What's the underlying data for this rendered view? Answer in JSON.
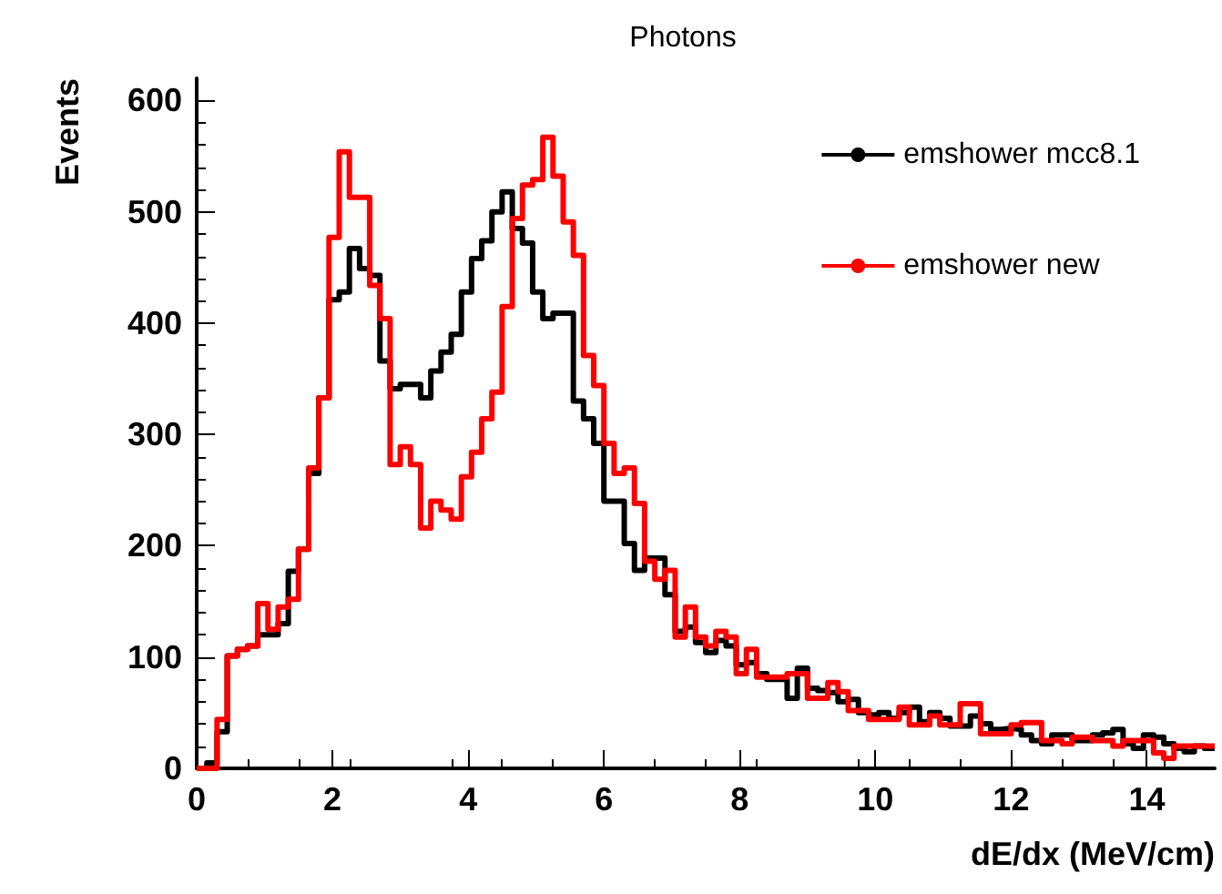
{
  "chart_data": {
    "type": "histogram",
    "title": "Photons",
    "xlabel": "dE/dx (MeV/cm)",
    "ylabel": "Events",
    "bins": [
      0,
      0.15,
      0.3,
      0.45,
      0.6,
      0.75,
      0.9,
      1.05,
      1.2,
      1.35,
      1.5,
      1.65,
      1.8,
      1.95,
      2.1,
      2.25,
      2.4,
      2.55,
      2.7,
      2.85,
      3,
      3.15,
      3.3,
      3.45,
      3.6,
      3.75,
      3.9,
      4.05,
      4.2,
      4.35,
      4.5,
      4.65,
      4.8,
      4.95,
      5.1,
      5.25,
      5.4,
      5.55,
      5.7,
      5.85,
      6,
      6.15,
      6.3,
      6.45,
      6.6,
      6.75,
      6.9,
      7.05,
      7.2,
      7.35,
      7.5,
      7.65,
      7.8,
      7.95,
      8.1,
      8.25,
      8.4,
      8.55,
      8.7,
      8.85,
      9,
      9.15,
      9.3,
      9.45,
      9.6,
      9.75,
      9.9,
      10.05,
      10.2,
      10.35,
      10.5,
      10.65,
      10.8,
      10.95,
      11.1,
      11.25,
      11.4,
      11.55,
      11.7,
      11.85,
      12,
      12.15,
      12.3,
      12.45,
      12.6,
      12.75,
      12.9,
      13.05,
      13.2,
      13.35,
      13.5,
      13.65,
      13.8,
      13.95,
      14.1,
      14.25,
      14.4,
      14.55,
      14.7,
      14.85,
      15
    ],
    "series": [
      {
        "name": "emshower mcc8.1",
        "color": "#000000",
        "values": [
          0,
          5,
          33,
          101,
          107,
          110,
          120,
          120,
          130,
          177,
          197,
          265,
          333,
          421,
          428,
          467,
          449,
          443,
          366,
          341,
          345,
          345,
          333,
          357,
          374,
          390,
          428,
          458,
          474,
          500,
          518,
          485,
          472,
          428,
          404,
          409,
          409,
          330,
          314,
          292,
          240,
          240,
          202,
          178,
          189,
          189,
          156,
          123,
          127,
          113,
          104,
          115,
          110,
          93,
          95,
          85,
          80,
          80,
          63,
          90,
          72,
          70,
          68,
          60,
          62,
          50,
          48,
          50,
          45,
          50,
          55,
          42,
          50,
          45,
          38,
          38,
          47,
          40,
          35,
          36,
          35,
          30,
          25,
          22,
          30,
          30,
          25,
          25,
          30,
          32,
          35,
          22,
          18,
          30,
          28,
          22,
          18,
          15,
          20,
          18
        ]
      },
      {
        "name": "emshower new",
        "color": "#ff0000",
        "values": [
          0,
          0,
          44,
          101,
          107,
          110,
          148,
          125,
          145,
          152,
          197,
          270,
          333,
          477,
          554,
          513,
          513,
          434,
          404,
          273,
          289,
          273,
          216,
          240,
          232,
          224,
          262,
          284,
          314,
          338,
          415,
          494,
          524,
          529,
          567,
          532,
          491,
          461,
          371,
          344,
          292,
          265,
          270,
          238,
          186,
          170,
          178,
          118,
          145,
          118,
          110,
          123,
          118,
          85,
          107,
          82,
          82,
          82,
          85,
          85,
          63,
          63,
          77,
          69,
          52,
          52,
          44,
          44,
          44,
          55,
          39,
          39,
          47,
          39,
          39,
          58,
          58,
          31,
          31,
          31,
          39,
          41,
          41,
          25,
          25,
          22,
          28,
          28,
          25,
          25,
          20,
          25,
          25,
          25,
          14,
          9,
          20,
          20,
          20,
          20
        ]
      }
    ],
    "xlim": [
      0,
      15
    ],
    "xticks": [
      0,
      2,
      4,
      6,
      8,
      10,
      12,
      14
    ],
    "ylim": [
      0,
      620
    ],
    "yticks": [
      0,
      100,
      200,
      300,
      400,
      500,
      600
    ],
    "legend": "top right"
  }
}
